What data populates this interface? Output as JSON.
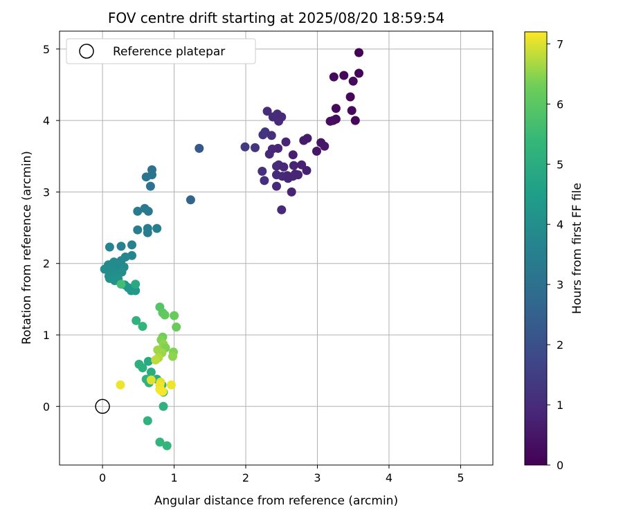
{
  "chart_data": {
    "type": "scatter",
    "title": "FOV centre drift starting at 2025/08/20 18:59:54",
    "xlabel": "Angular distance from reference (arcmin)",
    "ylabel": "Rotation from reference (arcmin)",
    "xlim": [
      -0.6,
      5.45
    ],
    "ylim": [
      -0.82,
      5.25
    ],
    "xticks": [
      "0",
      "1",
      "2",
      "3",
      "4",
      "5"
    ],
    "yticks": [
      "0",
      "1",
      "2",
      "3",
      "4",
      "5"
    ],
    "grid": true,
    "legend": {
      "position": "top-left",
      "label": "Reference platepar"
    },
    "reference_point": {
      "x": 0,
      "y": 0
    },
    "colorbar": {
      "label": "Hours from first FF file",
      "range": [
        0,
        7.2
      ],
      "ticks": [
        "0",
        "1",
        "2",
        "3",
        "4",
        "5",
        "6",
        "7"
      ],
      "colormap": "viridis"
    },
    "points": [
      {
        "x": 3.58,
        "y": 4.95,
        "c": 0.05
      },
      {
        "x": 3.58,
        "y": 4.66,
        "c": 0.1
      },
      {
        "x": 3.37,
        "y": 4.63,
        "c": 0.15
      },
      {
        "x": 3.23,
        "y": 4.61,
        "c": 0.2
      },
      {
        "x": 3.5,
        "y": 4.55,
        "c": 0.2
      },
      {
        "x": 3.46,
        "y": 4.33,
        "c": 0.15
      },
      {
        "x": 3.26,
        "y": 4.17,
        "c": 0.2
      },
      {
        "x": 3.48,
        "y": 4.14,
        "c": 0.2
      },
      {
        "x": 3.26,
        "y": 4.02,
        "c": 0.25
      },
      {
        "x": 3.53,
        "y": 4.0,
        "c": 0.15
      },
      {
        "x": 3.18,
        "y": 3.99,
        "c": 0.3
      },
      {
        "x": 3.22,
        "y": 4.0,
        "c": 0.3
      },
      {
        "x": 3.05,
        "y": 3.69,
        "c": 0.45
      },
      {
        "x": 3.1,
        "y": 3.64,
        "c": 0.5
      },
      {
        "x": 2.99,
        "y": 3.57,
        "c": 0.5
      },
      {
        "x": 2.86,
        "y": 3.75,
        "c": 0.6
      },
      {
        "x": 2.81,
        "y": 3.72,
        "c": 0.6
      },
      {
        "x": 2.66,
        "y": 3.52,
        "c": 0.7
      },
      {
        "x": 2.56,
        "y": 3.7,
        "c": 0.8
      },
      {
        "x": 2.45,
        "y": 3.61,
        "c": 0.85
      },
      {
        "x": 2.37,
        "y": 3.6,
        "c": 0.9
      },
      {
        "x": 2.33,
        "y": 3.53,
        "c": 0.9
      },
      {
        "x": 2.3,
        "y": 4.13,
        "c": 1.0
      },
      {
        "x": 2.38,
        "y": 4.05,
        "c": 1.0
      },
      {
        "x": 2.44,
        "y": 4.09,
        "c": 1.0
      },
      {
        "x": 2.5,
        "y": 4.05,
        "c": 0.95
      },
      {
        "x": 2.46,
        "y": 3.99,
        "c": 1.0
      },
      {
        "x": 2.24,
        "y": 3.8,
        "c": 1.2
      },
      {
        "x": 2.27,
        "y": 3.84,
        "c": 1.25
      },
      {
        "x": 2.36,
        "y": 3.79,
        "c": 1.1
      },
      {
        "x": 2.13,
        "y": 3.62,
        "c": 1.25
      },
      {
        "x": 1.99,
        "y": 3.63,
        "c": 1.4
      },
      {
        "x": 2.46,
        "y": 3.38,
        "c": 0.95
      },
      {
        "x": 2.43,
        "y": 3.36,
        "c": 1.0
      },
      {
        "x": 2.53,
        "y": 3.35,
        "c": 0.9
      },
      {
        "x": 2.67,
        "y": 3.37,
        "c": 0.8
      },
      {
        "x": 2.78,
        "y": 3.38,
        "c": 0.75
      },
      {
        "x": 2.85,
        "y": 3.3,
        "c": 0.7
      },
      {
        "x": 2.69,
        "y": 3.25,
        "c": 0.8
      },
      {
        "x": 2.66,
        "y": 3.22,
        "c": 0.85
      },
      {
        "x": 2.73,
        "y": 3.24,
        "c": 0.8
      },
      {
        "x": 2.58,
        "y": 3.23,
        "c": 0.85
      },
      {
        "x": 2.51,
        "y": 3.22,
        "c": 0.9
      },
      {
        "x": 2.59,
        "y": 3.19,
        "c": 0.85
      },
      {
        "x": 2.43,
        "y": 3.24,
        "c": 0.95
      },
      {
        "x": 2.23,
        "y": 3.29,
        "c": 1.1
      },
      {
        "x": 2.26,
        "y": 3.16,
        "c": 1.1
      },
      {
        "x": 2.43,
        "y": 3.08,
        "c": 0.95
      },
      {
        "x": 2.64,
        "y": 3.0,
        "c": 0.8
      },
      {
        "x": 2.5,
        "y": 2.75,
        "c": 0.95
      },
      {
        "x": 1.35,
        "y": 3.61,
        "c": 2.2
      },
      {
        "x": 1.23,
        "y": 2.89,
        "c": 2.6
      },
      {
        "x": 0.69,
        "y": 3.31,
        "c": 3.0
      },
      {
        "x": 0.69,
        "y": 3.24,
        "c": 3.1
      },
      {
        "x": 0.61,
        "y": 3.21,
        "c": 3.15
      },
      {
        "x": 0.67,
        "y": 3.08,
        "c": 3.05
      },
      {
        "x": 0.59,
        "y": 2.77,
        "c": 3.3
      },
      {
        "x": 0.64,
        "y": 2.73,
        "c": 3.3
      },
      {
        "x": 0.49,
        "y": 2.73,
        "c": 3.4
      },
      {
        "x": 0.49,
        "y": 2.47,
        "c": 3.45
      },
      {
        "x": 0.63,
        "y": 2.49,
        "c": 3.4
      },
      {
        "x": 0.63,
        "y": 2.43,
        "c": 3.4
      },
      {
        "x": 0.76,
        "y": 2.49,
        "c": 3.5
      },
      {
        "x": 0.41,
        "y": 2.26,
        "c": 3.6
      },
      {
        "x": 0.26,
        "y": 2.24,
        "c": 3.6
      },
      {
        "x": 0.1,
        "y": 2.23,
        "c": 3.65
      },
      {
        "x": 0.41,
        "y": 2.11,
        "c": 3.7
      },
      {
        "x": 0.32,
        "y": 2.09,
        "c": 3.75
      },
      {
        "x": 0.26,
        "y": 2.04,
        "c": 3.8
      },
      {
        "x": 0.16,
        "y": 2.02,
        "c": 3.85
      },
      {
        "x": 0.08,
        "y": 1.98,
        "c": 3.9
      },
      {
        "x": 0.13,
        "y": 1.99,
        "c": 3.9
      },
      {
        "x": 0.3,
        "y": 1.95,
        "c": 3.85
      },
      {
        "x": 0.2,
        "y": 1.94,
        "c": 3.9
      },
      {
        "x": 0.03,
        "y": 1.92,
        "c": 3.95
      },
      {
        "x": 0.12,
        "y": 1.89,
        "c": 3.95
      },
      {
        "x": 0.18,
        "y": 1.85,
        "c": 4.0
      },
      {
        "x": 0.27,
        "y": 1.88,
        "c": 4.0
      },
      {
        "x": 0.09,
        "y": 1.82,
        "c": 4.0
      },
      {
        "x": 0.1,
        "y": 1.79,
        "c": 4.05
      },
      {
        "x": 0.17,
        "y": 1.76,
        "c": 4.1
      },
      {
        "x": 0.22,
        "y": 1.78,
        "c": 4.1
      },
      {
        "x": 0.31,
        "y": 1.7,
        "c": 4.2
      },
      {
        "x": 0.36,
        "y": 1.66,
        "c": 4.25
      },
      {
        "x": 0.4,
        "y": 1.62,
        "c": 4.3
      },
      {
        "x": 0.46,
        "y": 1.62,
        "c": 4.3
      },
      {
        "x": 0.46,
        "y": 1.71,
        "c": 4.9
      },
      {
        "x": 0.26,
        "y": 1.71,
        "c": 5.6
      },
      {
        "x": 0.47,
        "y": 1.2,
        "c": 5.2
      },
      {
        "x": 0.56,
        "y": 1.12,
        "c": 5.3
      },
      {
        "x": 0.64,
        "y": 0.63,
        "c": 4.9
      },
      {
        "x": 0.51,
        "y": 0.59,
        "c": 5.1
      },
      {
        "x": 0.56,
        "y": 0.54,
        "c": 5.1
      },
      {
        "x": 0.68,
        "y": 0.48,
        "c": 5.0
      },
      {
        "x": 0.61,
        "y": 0.38,
        "c": 5.2
      },
      {
        "x": 0.65,
        "y": 0.33,
        "c": 5.2
      },
      {
        "x": 0.76,
        "y": 0.38,
        "c": 5.0
      },
      {
        "x": 0.83,
        "y": 0.3,
        "c": 5.3
      },
      {
        "x": 0.85,
        "y": 0.2,
        "c": 5.3
      },
      {
        "x": 0.85,
        "y": 0.0,
        "c": 5.2
      },
      {
        "x": 0.63,
        "y": -0.2,
        "c": 5.2
      },
      {
        "x": 0.8,
        "y": -0.5,
        "c": 5.3
      },
      {
        "x": 0.9,
        "y": -0.55,
        "c": 5.3
      },
      {
        "x": 0.8,
        "y": 1.39,
        "c": 5.9
      },
      {
        "x": 0.84,
        "y": 1.31,
        "c": 6.0
      },
      {
        "x": 0.87,
        "y": 1.28,
        "c": 6.1
      },
      {
        "x": 1.0,
        "y": 1.27,
        "c": 6.2
      },
      {
        "x": 1.03,
        "y": 1.11,
        "c": 6.2
      },
      {
        "x": 0.84,
        "y": 0.97,
        "c": 6.3
      },
      {
        "x": 0.82,
        "y": 0.93,
        "c": 6.4
      },
      {
        "x": 0.85,
        "y": 0.87,
        "c": 6.5
      },
      {
        "x": 0.88,
        "y": 0.82,
        "c": 6.4
      },
      {
        "x": 0.77,
        "y": 0.79,
        "c": 6.6
      },
      {
        "x": 0.83,
        "y": 0.75,
        "c": 6.6
      },
      {
        "x": 0.99,
        "y": 0.76,
        "c": 6.4
      },
      {
        "x": 0.98,
        "y": 0.7,
        "c": 6.5
      },
      {
        "x": 0.78,
        "y": 0.68,
        "c": 6.7
      },
      {
        "x": 0.74,
        "y": 0.65,
        "c": 6.8
      },
      {
        "x": 0.68,
        "y": 0.37,
        "c": 7.0
      },
      {
        "x": 0.81,
        "y": 0.34,
        "c": 7.0
      },
      {
        "x": 0.8,
        "y": 0.3,
        "c": 7.1
      },
      {
        "x": 0.8,
        "y": 0.24,
        "c": 7.1
      },
      {
        "x": 0.82,
        "y": 0.22,
        "c": 7.15
      },
      {
        "x": 0.84,
        "y": 0.21,
        "c": 7.15
      },
      {
        "x": 0.96,
        "y": 0.3,
        "c": 7.1
      },
      {
        "x": 0.25,
        "y": 0.3,
        "c": 7.1
      }
    ]
  }
}
